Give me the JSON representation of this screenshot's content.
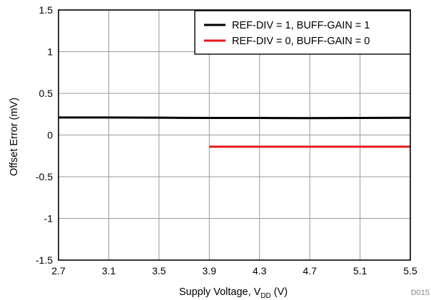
{
  "chart_data": {
    "type": "line",
    "title": "",
    "xlabel_main": "Supply Voltage, V",
    "xlabel_sub": "DD",
    "xlabel_unit": " (V)",
    "ylabel": "Offset Error (mV)",
    "xlim": [
      2.7,
      5.5
    ],
    "ylim": [
      -1.5,
      1.5
    ],
    "x_ticks": [
      "2.7",
      "3.1",
      "3.5",
      "3.9",
      "4.3",
      "4.7",
      "5.1",
      "5.5"
    ],
    "y_ticks": [
      "1.5",
      "1",
      "0.5",
      "0",
      "-0.5",
      "-1",
      "-1.5"
    ],
    "grid": true,
    "legend_position": "top-right",
    "series": [
      {
        "name": "REF-DIV = 1, BUFF-GAIN = 1",
        "color": "#000000",
        "x": [
          2.7,
          3.1,
          3.5,
          3.9,
          4.3,
          4.7,
          5.1,
          5.5
        ],
        "y": [
          0.21,
          0.21,
          0.208,
          0.205,
          0.205,
          0.203,
          0.205,
          0.207
        ]
      },
      {
        "name": "REF-DIV = 0, BUFF-GAIN = 0",
        "color": "#e8161b",
        "x": [
          3.9,
          4.3,
          4.7,
          5.1,
          5.5
        ],
        "y": [
          -0.14,
          -0.14,
          -0.14,
          -0.14,
          -0.14
        ]
      }
    ],
    "figure_id": "D015"
  }
}
